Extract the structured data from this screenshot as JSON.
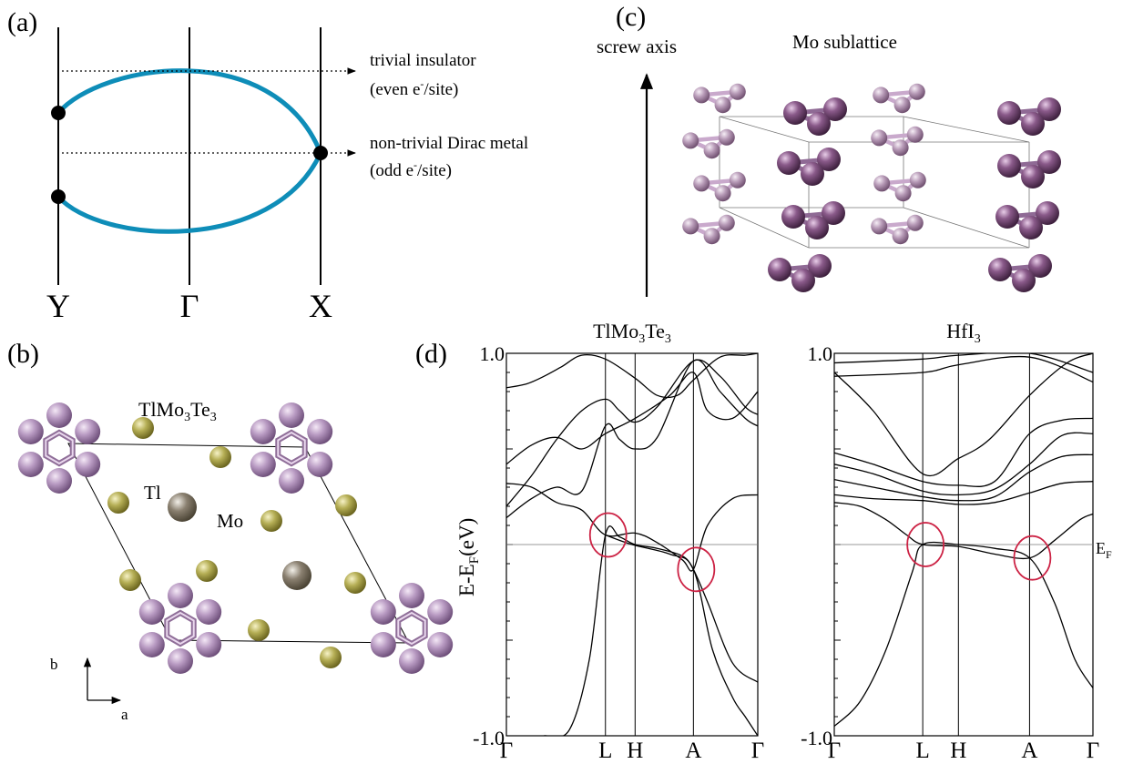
{
  "panel_a": {
    "label": "(a)",
    "kpoints": [
      "Y",
      "Γ",
      "X"
    ],
    "ann1_line1": "trivial insulator",
    "ann1_line2_pre": "(even e",
    "ann1_sup": "-",
    "ann1_line2_post": "/site)",
    "ann2_line1": "non-trivial Dirac metal",
    "ann2_line2_pre": "(odd e",
    "ann2_sup": "-",
    "ann2_line2_post": "/site)",
    "band_color": "#0e8db8"
  },
  "panel_b": {
    "label": "(b)",
    "title_parts": [
      "TlMo",
      "3",
      "Te",
      "3"
    ],
    "label_tl": "Tl",
    "label_mo": "Mo",
    "axis_a": "a",
    "axis_b": "b",
    "colors": {
      "pink": "#b89ac2",
      "olive": "#b5ae55",
      "gray": "#8a8070"
    }
  },
  "panel_c": {
    "label": "(c)",
    "title": "Mo sublattice",
    "axis_label": "screw axis",
    "color": "#a87ca8"
  },
  "panel_d": {
    "label": "(d)",
    "ylabel_main": "E-E",
    "ylabel_sub": "F",
    "ylabel_unit": "(eV)",
    "ef_main": "E",
    "ef_sub": "F",
    "circle_color": "#cc2244"
  },
  "chart_data": [
    {
      "type": "line",
      "title_parts": [
        "TlMo",
        "3",
        "Te",
        "3"
      ],
      "ylim": [
        -1.0,
        1.0
      ],
      "ytick_labels": [
        "1.0",
        "-1.0"
      ],
      "kpath": [
        "Γ",
        "L",
        "H",
        "A",
        "Γ"
      ],
      "kpos": [
        0,
        0.394,
        0.512,
        0.744,
        1.0
      ],
      "dirac_points": [
        {
          "k": "L",
          "E": 0.05
        },
        {
          "k": "A",
          "E": -0.13
        }
      ],
      "series": [
        {
          "x": [
            0,
            0.1,
            0.2,
            0.3,
            0.394,
            0.45,
            0.512,
            0.6,
            0.744,
            0.85,
            0.95,
            1.0
          ],
          "y": [
            0.2,
            0.36,
            0.55,
            0.7,
            0.76,
            0.7,
            0.64,
            0.72,
            0.96,
            0.88,
            0.72,
            0.68
          ]
        },
        {
          "x": [
            0,
            0.1,
            0.2,
            0.3,
            0.394,
            0.45,
            0.512,
            0.6,
            0.744,
            0.85,
            0.95,
            1.0
          ],
          "y": [
            0.14,
            0.24,
            0.3,
            0.28,
            0.62,
            0.55,
            0.5,
            0.56,
            0.96,
            0.8,
            0.66,
            0.62
          ]
        },
        {
          "x": [
            0,
            0.08,
            0.15,
            0.22,
            0.3,
            0.394,
            0.512,
            0.6,
            0.68,
            0.744,
            0.85,
            0.95,
            1.0
          ],
          "y": [
            0.82,
            0.84,
            0.88,
            0.93,
            0.99,
            0.97,
            0.87,
            0.78,
            0.78,
            0.86,
            0.98,
            0.99,
            1.0
          ]
        },
        {
          "x": [
            0,
            0.1,
            0.2,
            0.3,
            0.394,
            0.512,
            0.65,
            0.744,
            0.8,
            0.9,
            1.0
          ],
          "y": [
            0.42,
            0.52,
            0.56,
            0.5,
            0.58,
            0.66,
            0.78,
            0.9,
            0.7,
            0.66,
            0.8
          ]
        },
        {
          "x": [
            0,
            0.1,
            0.2,
            0.3,
            0.394,
            0.512,
            0.6,
            0.7,
            0.744,
            0.8,
            0.9,
            1.0
          ],
          "y": [
            0.32,
            0.3,
            0.22,
            0.18,
            0.05,
            0.06,
            0.01,
            -0.08,
            -0.13,
            0.1,
            0.24,
            0.26
          ]
        },
        {
          "x": [
            0.15,
            0.25,
            0.33,
            0.394,
            0.45,
            0.512,
            0.6,
            0.7,
            0.744,
            0.8,
            0.9,
            1.0
          ],
          "y": [
            -1.0,
            -0.97,
            -0.6,
            0.05,
            0.04,
            0.0,
            -0.02,
            -0.06,
            -0.13,
            -0.3,
            -0.62,
            -0.72
          ]
        },
        {
          "x": [
            0.394,
            0.5,
            0.65,
            0.744,
            0.82,
            0.9,
            0.95,
            1.0
          ],
          "y": [
            0.05,
            0.0,
            -0.05,
            -0.13,
            -0.55,
            -0.8,
            -0.9,
            -1.0
          ]
        }
      ]
    },
    {
      "type": "line",
      "title_parts": [
        "HfI",
        "3"
      ],
      "ylim": [
        -1.0,
        1.0
      ],
      "ytick_labels": [
        "1.0",
        "-1.0"
      ],
      "kpath": [
        "Γ",
        "L",
        "H",
        "A",
        "Γ"
      ],
      "kpos": [
        0,
        0.342,
        0.48,
        0.755,
        1.0
      ],
      "dirac_points": [
        {
          "k": "L",
          "E": 0.0
        },
        {
          "k": "A",
          "E": -0.07
        }
      ],
      "series": [
        {
          "x": [
            0,
            0.342,
            0.48,
            0.755,
            1.0
          ],
          "y": [
            0.95,
            0.97,
            0.99,
            1.0,
            0.9
          ]
        },
        {
          "x": [
            0,
            0.15,
            0.342,
            0.48,
            0.6,
            0.755,
            0.9,
            1.0
          ],
          "y": [
            0.9,
            0.7,
            0.37,
            0.45,
            0.55,
            0.78,
            0.95,
            1.0
          ]
        },
        {
          "x": [
            0,
            0.342,
            0.48,
            0.755,
            1.0
          ],
          "y": [
            0.88,
            0.9,
            0.94,
            0.98,
            0.85
          ]
        },
        {
          "x": [
            0,
            0.15,
            0.342,
            0.48,
            0.62,
            0.755,
            0.88,
            1.0
          ],
          "y": [
            0.48,
            0.42,
            0.33,
            0.31,
            0.33,
            0.58,
            0.65,
            0.66
          ]
        },
        {
          "x": [
            0,
            0.15,
            0.342,
            0.48,
            0.62,
            0.755,
            0.88,
            1.0
          ],
          "y": [
            0.42,
            0.37,
            0.28,
            0.26,
            0.29,
            0.42,
            0.57,
            0.58
          ]
        },
        {
          "x": [
            0,
            0.15,
            0.342,
            0.48,
            0.62,
            0.755,
            0.88,
            1.0
          ],
          "y": [
            0.34,
            0.3,
            0.25,
            0.23,
            0.25,
            0.38,
            0.46,
            0.47
          ]
        },
        {
          "x": [
            0,
            0.15,
            0.342,
            0.48,
            0.62,
            0.755,
            0.88,
            1.0
          ],
          "y": [
            0.26,
            0.24,
            0.23,
            0.21,
            0.22,
            0.27,
            0.32,
            0.33
          ]
        },
        {
          "x": [
            0,
            0.1,
            0.2,
            0.28,
            0.342,
            0.48,
            0.62,
            0.755,
            0.85,
            0.95,
            1.0
          ],
          "y": [
            0.22,
            0.2,
            0.13,
            0.05,
            0.0,
            -0.01,
            -0.05,
            -0.07,
            0.02,
            0.13,
            0.16
          ]
        },
        {
          "x": [
            0,
            0.1,
            0.2,
            0.3,
            0.342,
            0.48,
            0.62,
            0.755,
            0.85,
            0.93,
            1.0
          ],
          "y": [
            -0.95,
            -0.82,
            -0.55,
            -0.15,
            0.0,
            0.0,
            -0.02,
            -0.07,
            -0.3,
            -0.6,
            -0.75
          ]
        }
      ]
    }
  ]
}
